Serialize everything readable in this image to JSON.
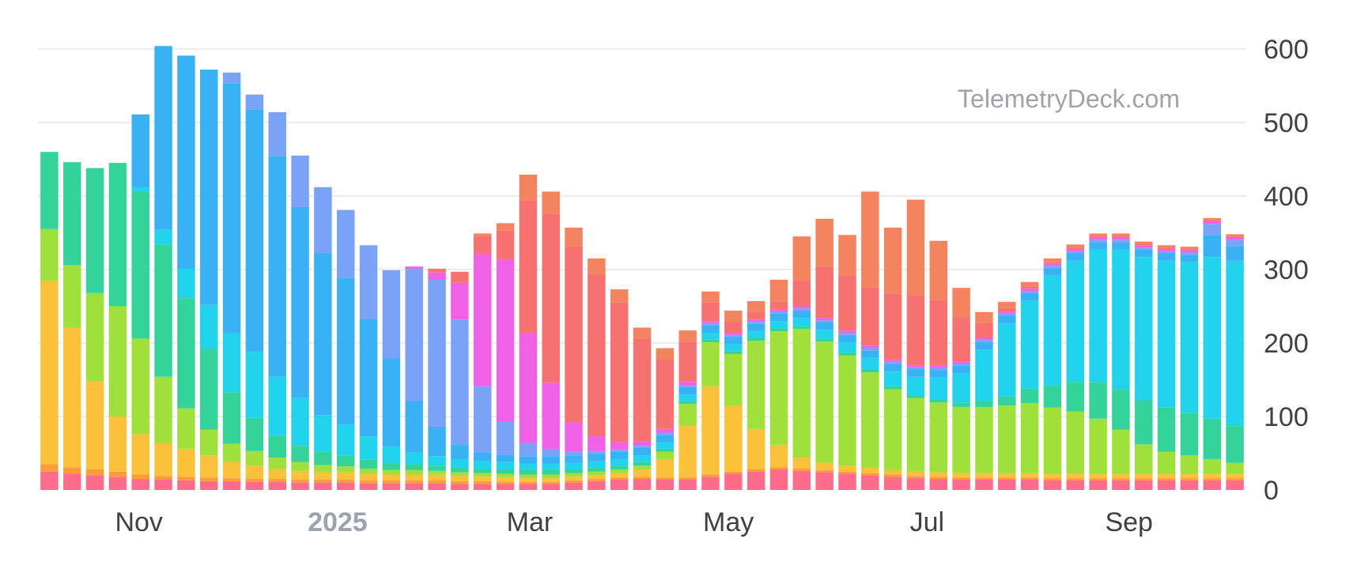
{
  "watermark": "TelemetryDeck.com",
  "chart_data": {
    "type": "bar",
    "stacked": true,
    "orientation": "vertical",
    "y_axis_side": "right",
    "ylim": [
      0,
      600
    ],
    "yticks": [
      0,
      100,
      200,
      300,
      400,
      500,
      600
    ],
    "grid": true,
    "legend": "none",
    "title": "",
    "xlabel": "",
    "ylabel": "",
    "x_tick_labels": [
      {
        "label": "Nov",
        "date": "2024-11-01",
        "emphasis": false
      },
      {
        "label": "2025",
        "date": "2025-01-01",
        "emphasis": true
      },
      {
        "label": "Mar",
        "date": "2025-03-01",
        "emphasis": false
      },
      {
        "label": "May",
        "date": "2025-05-01",
        "emphasis": false
      },
      {
        "label": "Jul",
        "date": "2025-07-01",
        "emphasis": false
      },
      {
        "label": "Sep",
        "date": "2025-09-01",
        "emphasis": false
      }
    ],
    "bar_frequency": "weekly",
    "categories": [
      "2024-10-01",
      "2024-10-08",
      "2024-10-15",
      "2024-10-22",
      "2024-10-29",
      "2024-11-05",
      "2024-11-12",
      "2024-11-19",
      "2024-11-26",
      "2024-12-03",
      "2024-12-10",
      "2024-12-17",
      "2024-12-24",
      "2024-12-31",
      "2025-01-07",
      "2025-01-14",
      "2025-01-21",
      "2025-01-28",
      "2025-02-04",
      "2025-02-11",
      "2025-02-18",
      "2025-02-25",
      "2025-03-04",
      "2025-03-11",
      "2025-03-18",
      "2025-03-25",
      "2025-04-01",
      "2025-04-08",
      "2025-04-15",
      "2025-04-22",
      "2025-04-29",
      "2025-05-06",
      "2025-05-13",
      "2025-05-20",
      "2025-05-27",
      "2025-06-03",
      "2025-06-10",
      "2025-06-17",
      "2025-06-24",
      "2025-07-01",
      "2025-07-08",
      "2025-07-15",
      "2025-07-22",
      "2025-07-29",
      "2025-08-05",
      "2025-08-12",
      "2025-08-19",
      "2025-08-26",
      "2025-09-02",
      "2025-09-09",
      "2025-09-16",
      "2025-09-23",
      "2025-09-30"
    ],
    "series": [
      {
        "color": "#ff6b8a",
        "values": [
          25,
          22,
          20,
          18,
          15,
          14,
          13,
          12,
          12,
          11,
          11,
          10,
          10,
          10,
          9,
          9,
          9,
          9,
          8,
          8,
          8,
          8,
          8,
          10,
          12,
          14,
          15,
          14,
          14,
          18,
          22,
          25,
          28,
          26,
          24,
          22,
          20,
          18,
          16,
          15,
          14,
          14,
          14,
          14,
          13,
          13,
          13,
          13,
          13,
          13,
          13,
          13,
          13
        ]
      },
      {
        "color": "#fb9b3e",
        "values": [
          10,
          9,
          8,
          7,
          6,
          5,
          5,
          5,
          4,
          4,
          4,
          4,
          4,
          4,
          4,
          4,
          4,
          4,
          4,
          4,
          3,
          3,
          3,
          3,
          3,
          3,
          3,
          3,
          3,
          3,
          3,
          3,
          3,
          3,
          3,
          3,
          3,
          3,
          3,
          3,
          3,
          3,
          3,
          3,
          3,
          3,
          3,
          3,
          3,
          3,
          3,
          3,
          3
        ]
      },
      {
        "color": "#fcc13b",
        "values": [
          250,
          190,
          120,
          75,
          55,
          45,
          38,
          30,
          22,
          18,
          14,
          12,
          10,
          10,
          9,
          8,
          8,
          8,
          7,
          6,
          6,
          5,
          5,
          5,
          5,
          6,
          10,
          25,
          70,
          120,
          90,
          55,
          30,
          15,
          10,
          8,
          7,
          6,
          6,
          6,
          6,
          6,
          6,
          6,
          6,
          6,
          6,
          6,
          6,
          6,
          6,
          6,
          6
        ]
      },
      {
        "color": "#9fe03b",
        "values": [
          70,
          85,
          120,
          150,
          130,
          90,
          55,
          35,
          25,
          20,
          15,
          12,
          10,
          8,
          7,
          6,
          6,
          5,
          5,
          5,
          5,
          5,
          5,
          5,
          5,
          5,
          5,
          10,
          30,
          60,
          70,
          120,
          155,
          175,
          165,
          150,
          130,
          110,
          100,
          95,
          90,
          90,
          92,
          95,
          90,
          85,
          75,
          60,
          40,
          30,
          25,
          20,
          15
        ]
      },
      {
        "color": "#34d399",
        "values": [
          105,
          140,
          170,
          195,
          200,
          180,
          150,
          110,
          70,
          45,
          30,
          22,
          18,
          15,
          12,
          10,
          8,
          7,
          7,
          6,
          6,
          6,
          6,
          5,
          5,
          5,
          5,
          4,
          4,
          4,
          4,
          4,
          4,
          4,
          4,
          4,
          4,
          4,
          4,
          4,
          6,
          8,
          12,
          20,
          30,
          40,
          50,
          55,
          60,
          60,
          58,
          55,
          50
        ]
      },
      {
        "color": "#22d3ee",
        "values": [
          0,
          0,
          0,
          0,
          5,
          20,
          40,
          60,
          80,
          90,
          80,
          65,
          50,
          42,
          32,
          22,
          16,
          13,
          11,
          10,
          10,
          9,
          9,
          9,
          9,
          9,
          9,
          9,
          9,
          9,
          9,
          9,
          10,
          11,
          12,
          14,
          16,
          20,
          25,
          30,
          40,
          70,
          100,
          120,
          150,
          165,
          180,
          190,
          195,
          200,
          205,
          220,
          225
        ]
      },
      {
        "color": "#38b2f5",
        "values": [
          0,
          0,
          0,
          0,
          100,
          250,
          290,
          320,
          340,
          330,
          300,
          260,
          220,
          200,
          160,
          120,
          70,
          40,
          20,
          12,
          10,
          10,
          10,
          10,
          10,
          10,
          10,
          10,
          10,
          10,
          10,
          10,
          10,
          10,
          10,
          10,
          10,
          10,
          10,
          10,
          10,
          10,
          10,
          10,
          10,
          10,
          10,
          10,
          10,
          10,
          10,
          30,
          20
        ]
      },
      {
        "color": "#7aa2f7",
        "values": [
          0,
          0,
          0,
          0,
          0,
          0,
          0,
          0,
          15,
          20,
          60,
          70,
          90,
          92,
          100,
          120,
          180,
          200,
          170,
          90,
          45,
          18,
          10,
          5,
          4,
          3,
          3,
          3,
          3,
          3,
          3,
          3,
          3,
          3,
          3,
          3,
          3,
          3,
          3,
          3,
          3,
          3,
          3,
          3,
          3,
          3,
          3,
          3,
          3,
          3,
          3,
          15,
          8
        ]
      },
      {
        "color": "#ef62e8",
        "values": [
          0,
          0,
          0,
          0,
          0,
          0,
          0,
          0,
          0,
          0,
          0,
          0,
          0,
          0,
          0,
          0,
          3,
          10,
          50,
          180,
          220,
          150,
          90,
          40,
          20,
          10,
          6,
          5,
          4,
          3,
          3,
          3,
          3,
          3,
          3,
          3,
          3,
          3,
          3,
          3,
          3,
          3,
          3,
          3,
          3,
          3,
          3,
          3,
          3,
          3,
          3,
          3,
          3
        ]
      },
      {
        "color": "#f87171",
        "values": [
          0,
          0,
          0,
          0,
          0,
          0,
          0,
          0,
          0,
          0,
          0,
          0,
          0,
          0,
          0,
          0,
          0,
          5,
          15,
          25,
          40,
          180,
          230,
          240,
          220,
          190,
          140,
          95,
          55,
          25,
          15,
          10,
          10,
          35,
          70,
          75,
          80,
          90,
          95,
          90,
          60,
          20,
          5,
          3,
          2,
          2,
          2,
          2,
          2,
          2,
          2,
          2,
          2
        ]
      },
      {
        "color": "#f4845f",
        "values": [
          0,
          0,
          0,
          0,
          0,
          0,
          0,
          0,
          0,
          0,
          0,
          0,
          0,
          0,
          0,
          0,
          0,
          0,
          0,
          3,
          10,
          35,
          30,
          25,
          22,
          18,
          15,
          15,
          15,
          15,
          15,
          15,
          30,
          60,
          65,
          55,
          130,
          90,
          130,
          80,
          40,
          15,
          8,
          6,
          5,
          4,
          4,
          4,
          3,
          3,
          3,
          3,
          3
        ]
      }
    ]
  }
}
